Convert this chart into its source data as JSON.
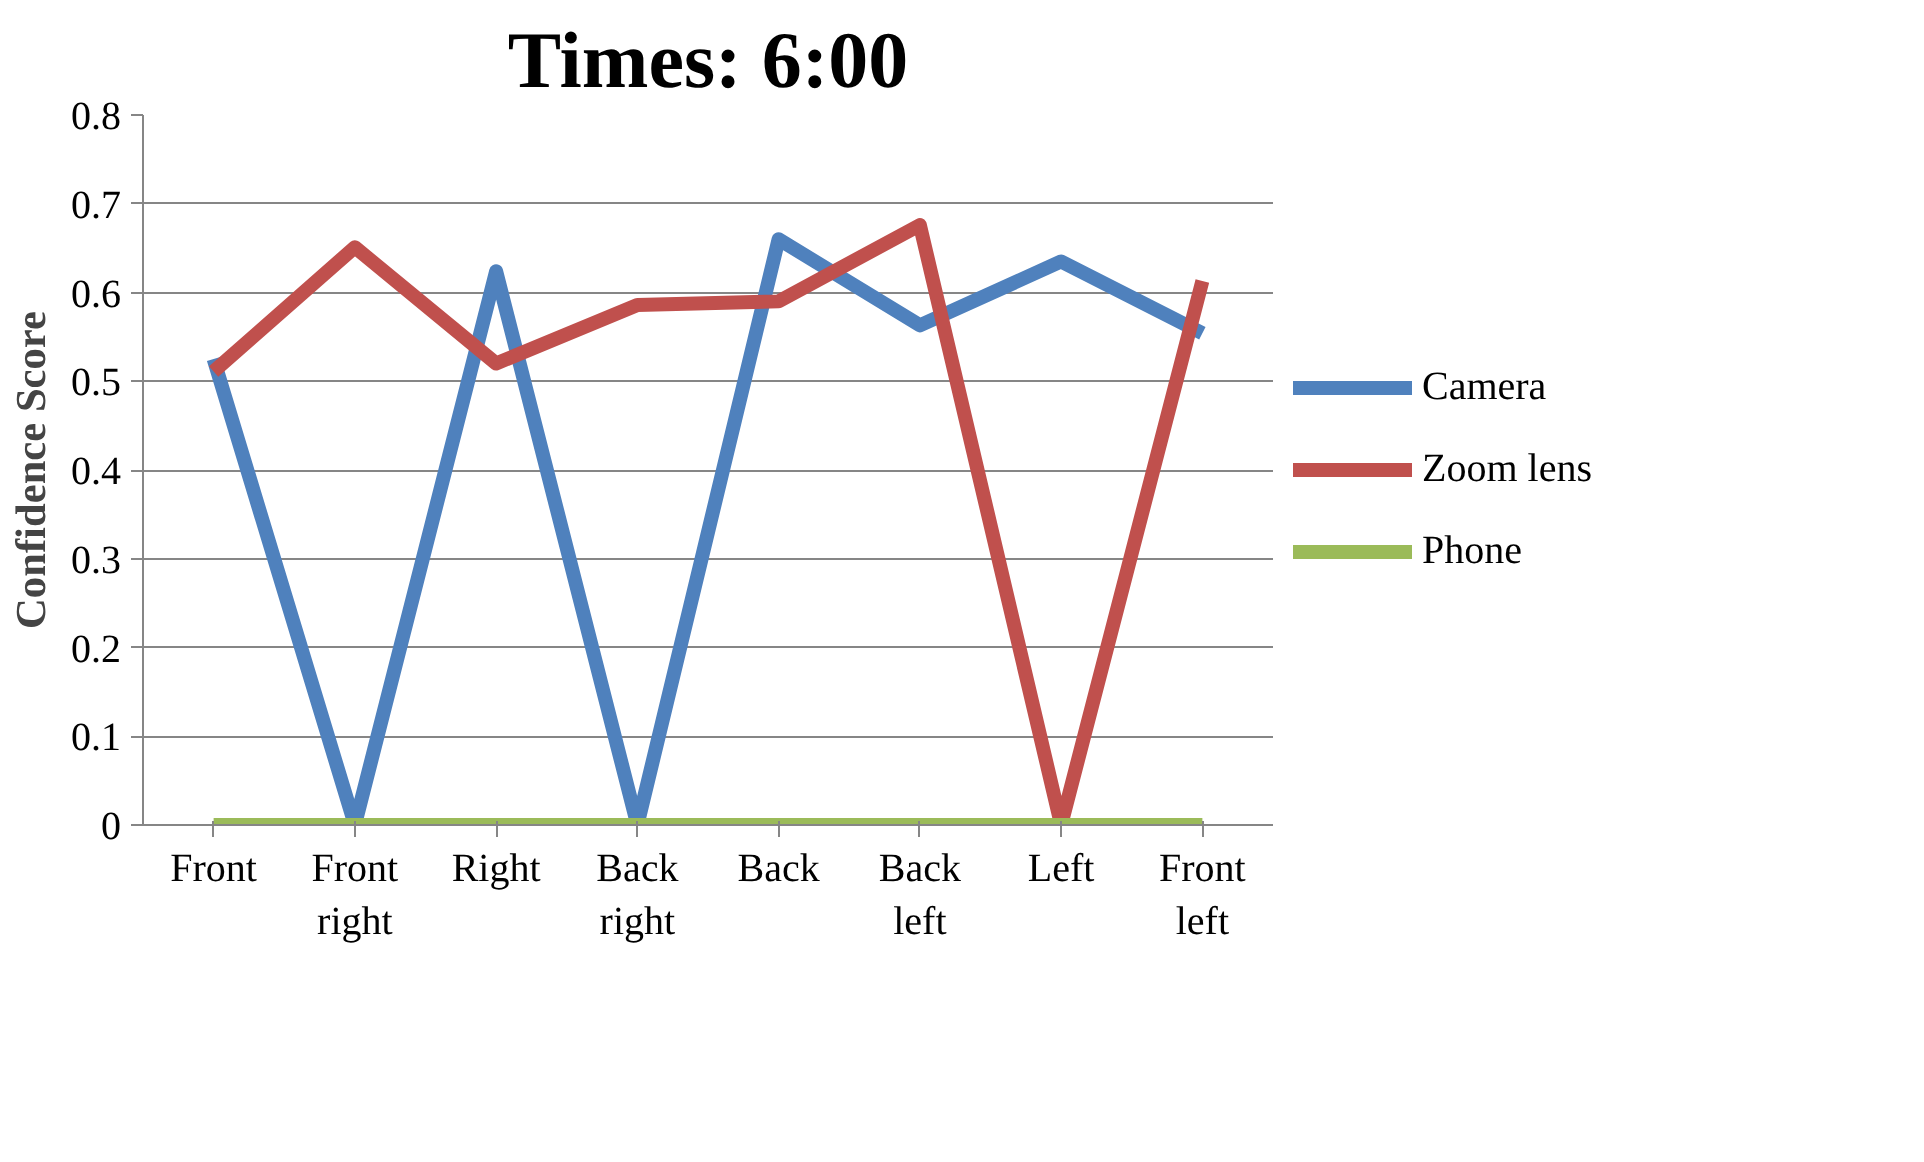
{
  "chart_data": {
    "type": "line",
    "title": "Times: 6:00",
    "ylabel": "Confidence Score",
    "categories": [
      "Front",
      "Front right",
      "Right",
      "Back right",
      "Back",
      "Back left",
      "Left",
      "Front left"
    ],
    "series": [
      {
        "name": "Camera",
        "color": "#4f81bd",
        "values": [
          0.525,
          0,
          0.624,
          0,
          0.66,
          0.563,
          0.635,
          0.554
        ]
      },
      {
        "name": "Zoom lens",
        "color": "#c0504d",
        "values": [
          0.511,
          0.651,
          0.52,
          0.586,
          0.59,
          0.676,
          0,
          0.613
        ]
      },
      {
        "name": "Phone",
        "color": "#9bbb59",
        "values": [
          0,
          0,
          0,
          0,
          0,
          0,
          0,
          0
        ]
      }
    ],
    "ylim": [
      0,
      0.8
    ],
    "yticks": [
      0,
      0.1,
      0.2,
      0.3,
      0.4,
      0.5,
      0.6,
      0.7,
      0.8
    ],
    "grid": "y",
    "legend": "right",
    "marker": "none",
    "line_style": "solid"
  }
}
